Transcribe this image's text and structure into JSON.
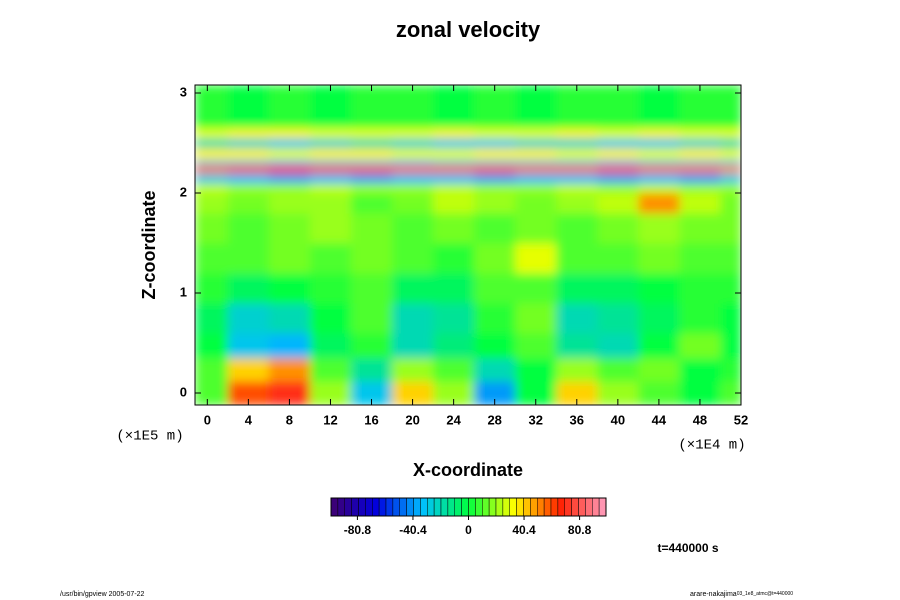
{
  "chart_data": {
    "type": "heatmap",
    "title": "zonal velocity",
    "xlabel": "X-coordinate",
    "ylabel": "Z-coordinate",
    "xunit": "(×1E4 m)",
    "yunit": "(×1E5 m)",
    "xlim": [
      -1.2,
      52
    ],
    "ylim": [
      -0.12,
      3.08
    ],
    "xticks": [
      0,
      4,
      8,
      12,
      16,
      20,
      24,
      28,
      32,
      36,
      40,
      44,
      48,
      52
    ],
    "yticks": [
      0,
      1,
      2,
      3
    ],
    "x_edges": [
      -1.2,
      2,
      6,
      10,
      14,
      18,
      22,
      26,
      30,
      34,
      38,
      42,
      46,
      50,
      52
    ],
    "y_edges": [
      -0.12,
      0.12,
      0.35,
      0.6,
      0.9,
      1.2,
      1.5,
      1.8,
      2.0,
      2.1,
      2.2,
      2.28,
      2.34,
      2.45,
      2.55,
      2.65,
      3.08
    ],
    "values": [
      [
        10,
        60,
        70,
        20,
        -30,
        40,
        20,
        -40,
        0,
        40,
        20,
        10,
        0,
        10
      ],
      [
        10,
        40,
        50,
        10,
        -15,
        20,
        10,
        -20,
        0,
        20,
        10,
        15,
        0,
        5
      ],
      [
        0,
        -30,
        -35,
        -5,
        5,
        -20,
        -10,
        0,
        10,
        -15,
        -20,
        0,
        15,
        0
      ],
      [
        -5,
        -25,
        -20,
        0,
        10,
        -20,
        -15,
        5,
        15,
        -20,
        -15,
        -5,
        5,
        0
      ],
      [
        5,
        -5,
        0,
        5,
        10,
        -5,
        -5,
        10,
        10,
        -5,
        -5,
        0,
        5,
        5
      ],
      [
        10,
        10,
        15,
        10,
        15,
        10,
        5,
        15,
        30,
        10,
        10,
        15,
        10,
        10
      ],
      [
        15,
        10,
        15,
        20,
        15,
        10,
        15,
        10,
        15,
        10,
        15,
        20,
        15,
        15
      ],
      [
        20,
        15,
        20,
        20,
        10,
        15,
        25,
        20,
        15,
        20,
        25,
        50,
        25,
        15
      ],
      [
        25,
        20,
        20,
        25,
        20,
        20,
        25,
        20,
        20,
        25,
        20,
        25,
        20,
        20
      ],
      [
        -30,
        -35,
        -40,
        -35,
        -40,
        -35,
        -35,
        -40,
        -35,
        -35,
        -40,
        -35,
        -40,
        -30
      ],
      [
        55,
        60,
        65,
        60,
        60,
        55,
        55,
        60,
        55,
        55,
        60,
        55,
        55,
        50
      ],
      [
        -30,
        -30,
        -35,
        -30,
        -30,
        -35,
        -30,
        -30,
        -30,
        -30,
        -35,
        -30,
        -30,
        -30
      ],
      [
        35,
        35,
        30,
        35,
        35,
        30,
        30,
        35,
        35,
        30,
        35,
        30,
        35,
        30
      ],
      [
        -20,
        -25,
        -30,
        -25,
        -20,
        -25,
        -30,
        -30,
        -25,
        -25,
        -30,
        -30,
        -25,
        -20
      ],
      [
        30,
        35,
        35,
        30,
        30,
        30,
        35,
        30,
        30,
        35,
        30,
        35,
        30,
        30
      ],
      [
        5,
        0,
        5,
        0,
        5,
        5,
        0,
        5,
        0,
        5,
        5,
        0,
        5,
        5
      ]
    ],
    "clim": [
      -100,
      100
    ],
    "colorbar_ticks": [
      -80.8,
      -40.4,
      0,
      40.4,
      80.8
    ],
    "colormap": [
      "#400070",
      "#0000e0",
      "#00c0ff",
      "#00ff40",
      "#ffff00",
      "#ff2000",
      "#ffa0c0"
    ],
    "annotation": "t=440000 s",
    "footer_left": "/usr/bin/gpview 2005-07-22",
    "footer_right": "arare-nakajima",
    "footer_right_small": "03_1e8_atmc@t=440000"
  }
}
